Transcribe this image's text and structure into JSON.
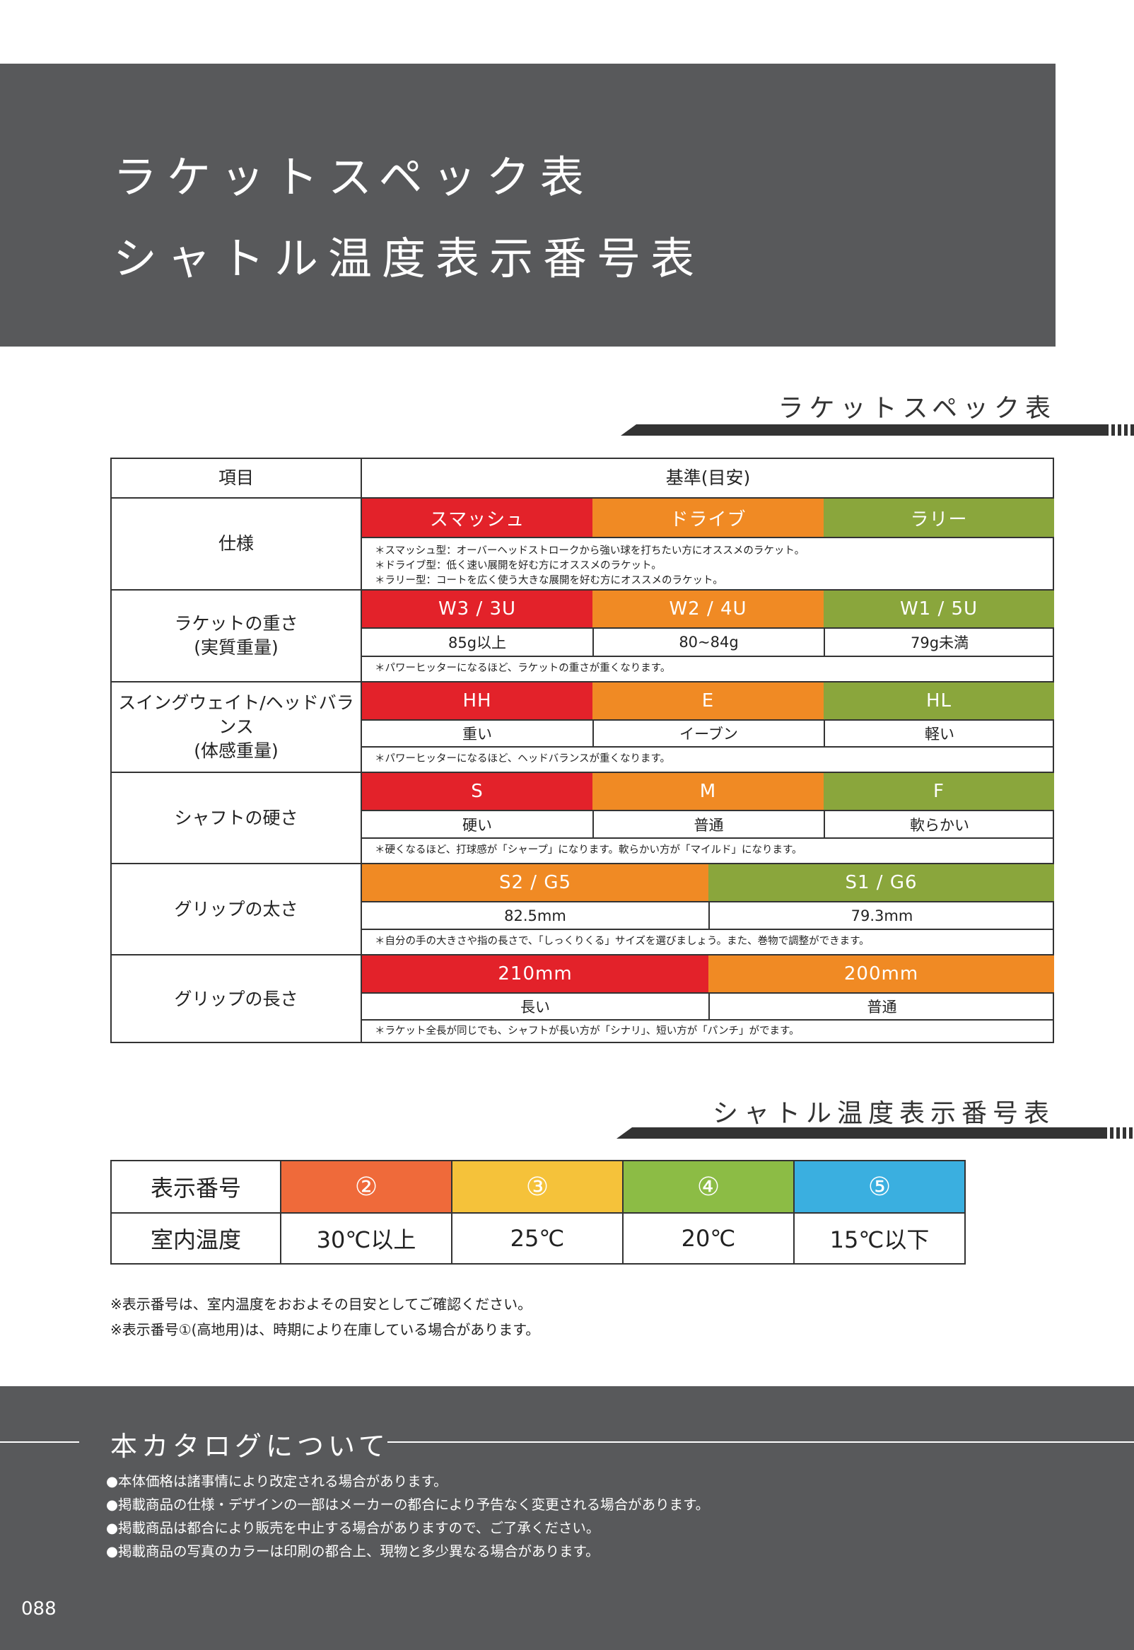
{
  "banner": {
    "title_line1": "ラケットスペック表",
    "title_line2": "シャトル温度表示番号表"
  },
  "racket_section": {
    "heading": "ラケットスペック表",
    "header": {
      "item": "項目",
      "criteria": "基準(目安)"
    },
    "rows": {
      "spec": {
        "label": "仕様",
        "values": [
          "スマッシュ",
          "ドライブ",
          "ラリー"
        ],
        "notes": [
          "＊スマッシュ型：オーバーヘッドストロークから強い球を打ちたい方にオススメのラケット。",
          "＊ドライブ型：低く速い展開を好む方にオススメのラケット。",
          "＊ラリー型：コートを広く使う大きな展開を好む方にオススメのラケット。"
        ]
      },
      "weight": {
        "label1": "ラケットの重さ",
        "label2": "(実質重量)",
        "values": [
          "W3 / 3U",
          "W2 / 4U",
          "W1 / 5U"
        ],
        "subvalues": [
          "85g以上",
          "80~84g",
          "79g未満"
        ],
        "note": "＊パワーヒッターになるほど、ラケットの重さが重くなります。"
      },
      "swing": {
        "label1": "スイングウェイト/ヘッドバランス",
        "label2": "(体感重量)",
        "values": [
          "HH",
          "E",
          "HL"
        ],
        "subvalues": [
          "重い",
          "イーブン",
          "軽い"
        ],
        "note": "＊パワーヒッターになるほど、ヘッドバランスが重くなります。"
      },
      "shaft": {
        "label": "シャフトの硬さ",
        "values": [
          "S",
          "M",
          "F"
        ],
        "subvalues": [
          "硬い",
          "普通",
          "軟らかい"
        ],
        "note": "＊硬くなるほど、打球感が「シャープ」になります。軟らかい方が「マイルド」になります。"
      },
      "grip_thickness": {
        "label": "グリップの太さ",
        "values": [
          "S2 / G5",
          "S1 / G6"
        ],
        "subvalues": [
          "82.5mm",
          "79.3mm"
        ],
        "note": "＊自分の手の大きさや指の長さで、「しっくりくる」サイズを選びましょう。また、巻物で調整ができます。"
      },
      "grip_length": {
        "label": "グリップの長さ",
        "values": [
          "210mm",
          "200mm"
        ],
        "subvalues": [
          "長い",
          "普通"
        ],
        "note": "＊ラケット全長が同じでも、シャフトが長い方が「シナリ」、短い方が「パンチ」がでます。"
      }
    }
  },
  "shuttle_section": {
    "heading": "シャトル温度表示番号表",
    "row1_label": "表示番号",
    "row2_label": "室内温度",
    "numbers": [
      "②",
      "③",
      "④",
      "⑤"
    ],
    "temps": [
      "30℃以上",
      "25℃",
      "20℃",
      "15℃以下"
    ],
    "colors": [
      "#ef6a3a",
      "#f5c23a",
      "#8cbc45",
      "#3aafe0"
    ],
    "notes": [
      "※表示番号は、室内温度をおおよその目安としてご確認ください。",
      "※表示番号①(高地用)は、時期により在庫している場合があります。"
    ]
  },
  "footer": {
    "title": "本カタログについて",
    "items": [
      "●本体価格は諸事情により改定される場合があります。",
      "●掲載商品の仕様・デザインの一部はメーカーの都合により予告なく変更される場合があります。",
      "●掲載商品は都合により販売を中止する場合がありますので、ご了承ください。",
      "●掲載商品の写真のカラーは印刷の都合上、現物と多少異なる場合があります。"
    ],
    "page_number": "088"
  }
}
